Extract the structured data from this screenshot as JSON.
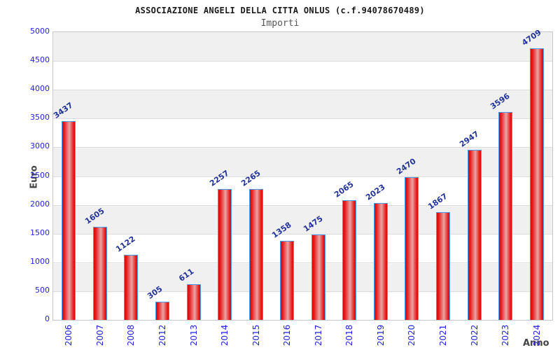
{
  "header": {
    "title": "ASSOCIAZIONE ANGELI DELLA CITTA ONLUS (c.f.94078670489)",
    "subtitle": "Importi"
  },
  "chart_data": {
    "type": "bar",
    "title": "ASSOCIAZIONE ANGELI DELLA CITTA ONLUS (c.f.94078670489)",
    "subtitle": "Importi",
    "categories": [
      "2006",
      "2007",
      "2008",
      "2012",
      "2013",
      "2014",
      "2015",
      "2016",
      "2017",
      "2018",
      "2019",
      "2020",
      "2021",
      "2022",
      "2023",
      "2024"
    ],
    "values": [
      3437,
      1605,
      1122,
      305,
      611,
      2257,
      2265,
      1358,
      1475,
      2065,
      2023,
      2470,
      1867,
      2947,
      3596,
      4709
    ],
    "xlabel": "Anno",
    "ylabel": "Euro",
    "ylim": [
      0,
      5000
    ],
    "yticks": [
      0,
      500,
      1000,
      1500,
      2000,
      2500,
      3000,
      3500,
      4000,
      4500,
      5000
    ],
    "grid": "alternating horizontal bands every 500",
    "legend": null,
    "bar_value_labels_rotated": true,
    "x_tick_labels_rotated": true
  },
  "colors": {
    "bar_red": "#e81717",
    "bar_center_highlight": "#e9a4a4",
    "bar_border_blue": "#4aa0f0",
    "tick_label_blue": "#2222dd",
    "value_label_navy": "#223399",
    "band_gray": "#f0f0f0",
    "axis_title_gray": "#444444",
    "title_black": "#1a1a1a",
    "subtitle_gray": "#555555"
  }
}
